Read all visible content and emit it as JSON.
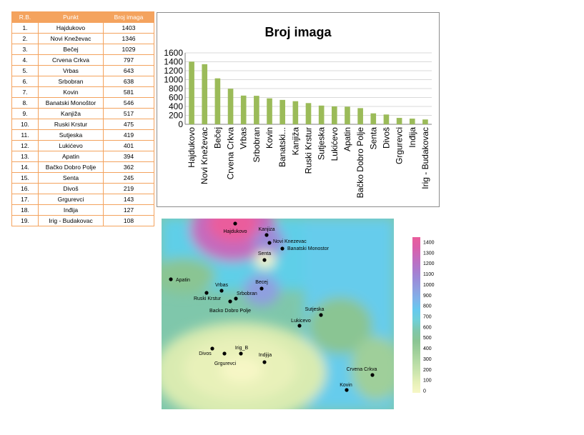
{
  "table": {
    "headers": [
      "R.B.",
      "Punkt",
      "Broj imaga"
    ],
    "rows": [
      [
        "1.",
        "Hajdukovo",
        "1403"
      ],
      [
        "2.",
        "Novi Kneževac",
        "1346"
      ],
      [
        "3.",
        "Bečej",
        "1029"
      ],
      [
        "4.",
        "Crvena Crkva",
        "797"
      ],
      [
        "5.",
        "Vrbas",
        "643"
      ],
      [
        "6.",
        "Srbobran",
        "638"
      ],
      [
        "7.",
        "Kovin",
        "581"
      ],
      [
        "8.",
        "Banatski Monoštor",
        "546"
      ],
      [
        "9.",
        "Kanjiža",
        "517"
      ],
      [
        "10.",
        "Ruski Krstur",
        "475"
      ],
      [
        "11.",
        "Sutjeska",
        "419"
      ],
      [
        "12.",
        "Lukićevo",
        "401"
      ],
      [
        "13.",
        "Apatin",
        "394"
      ],
      [
        "14.",
        "Bačko Dobro Polje",
        "362"
      ],
      [
        "15.",
        "Senta",
        "245"
      ],
      [
        "16.",
        "Divoš",
        "219"
      ],
      [
        "17.",
        "Grgurevci",
        "143"
      ],
      [
        "18.",
        "Inđija",
        "127"
      ],
      [
        "19.",
        "Irig - Budakovac",
        "108"
      ]
    ]
  },
  "chart_data": [
    {
      "type": "bar",
      "title": "Broj imaga",
      "categories": [
        "Hajdukovo",
        "Novi Kneževac",
        "Bečej",
        "Crvena Crkva",
        "Vrbas",
        "Srbobran",
        "Kovin",
        "Banatski...",
        "Kanjiža",
        "Ruski Krstur",
        "Sutjeska",
        "Lukićevo",
        "Apatin",
        "Bačko Dobro Polje",
        "Senta",
        "Divoš",
        "Grgurevci",
        "Inđija",
        "Irig - Budakovac"
      ],
      "values": [
        1403,
        1346,
        1029,
        797,
        643,
        638,
        581,
        546,
        517,
        475,
        419,
        401,
        394,
        362,
        245,
        219,
        143,
        127,
        108
      ],
      "ylim": [
        0,
        1600
      ],
      "yticks": [
        0,
        200,
        400,
        600,
        800,
        1000,
        1200,
        1400,
        1600
      ],
      "grid": true,
      "bar_color": "#9bbb59"
    },
    {
      "type": "heatmap",
      "points": [
        {
          "label": "Hajdukovo",
          "value": 1403
        },
        {
          "label": "Kanjiza",
          "value": 517
        },
        {
          "label": "Novi Knezevac",
          "value": 1346
        },
        {
          "label": "Banatski Monostor",
          "value": 546
        },
        {
          "label": "Senta",
          "value": 245
        },
        {
          "label": "Apatin",
          "value": 394
        },
        {
          "label": "Vrbas",
          "value": 643
        },
        {
          "label": "Becej",
          "value": 1029
        },
        {
          "label": "Srbobran",
          "value": 638
        },
        {
          "label": "Ruski Krstur",
          "value": 475
        },
        {
          "label": "Backo Dobro Polje",
          "value": 362
        },
        {
          "label": "Sutjeska",
          "value": 419
        },
        {
          "label": "Lukicevo",
          "value": 401
        },
        {
          "label": "Irig_B",
          "value": 108
        },
        {
          "label": "Divos",
          "value": 219
        },
        {
          "label": "Indjija",
          "value": 127
        },
        {
          "label": "Grgurevci",
          "value": 143
        },
        {
          "label": "Crvena Crkva",
          "value": 797
        },
        {
          "label": "Kovin",
          "value": 581
        }
      ],
      "colorbar": {
        "ticks": [
          0,
          100,
          200,
          300,
          400,
          500,
          600,
          700,
          800,
          900,
          1000,
          1100,
          1200,
          1300,
          1400
        ],
        "colors": [
          "#f7f7c6",
          "#e6f0b8",
          "#cce5ae",
          "#b5dba5",
          "#9fcf9a",
          "#8ac593",
          "#7fc7ab",
          "#6fd0d8",
          "#66c9ee",
          "#7fb3ea",
          "#8f9fe0",
          "#9b8bd8",
          "#ae79cc",
          "#c46bbd",
          "#db5faa",
          "#ea5d9c"
        ]
      }
    }
  ]
}
